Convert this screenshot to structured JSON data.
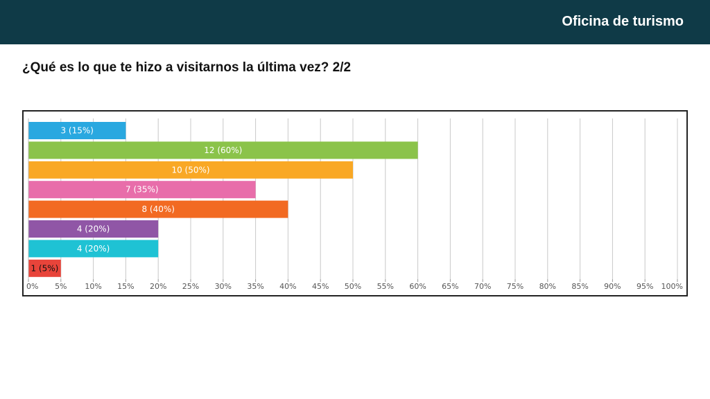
{
  "header": {
    "title": "Oficina de turismo"
  },
  "question": {
    "text": "¿Qué es lo que te hizo a visitarnos la última vez? 2/2"
  },
  "chart_data": {
    "type": "bar",
    "orientation": "horizontal",
    "title": "",
    "xlabel": "",
    "ylabel": "",
    "xlim": [
      0,
      100
    ],
    "grid": true,
    "x_ticks": [
      "0%",
      "5%",
      "10%",
      "15%",
      "20%",
      "25%",
      "30%",
      "35%",
      "40%",
      "45%",
      "50%",
      "55%",
      "60%",
      "65%",
      "70%",
      "75%",
      "80%",
      "85%",
      "90%",
      "95%",
      "100%"
    ],
    "bars": [
      {
        "count": 3,
        "percent": 15,
        "label": "3 (15%)",
        "color": "#29a8e0",
        "label_color": "#ffffff"
      },
      {
        "count": 12,
        "percent": 60,
        "label": "12 (60%)",
        "color": "#8bc34a",
        "label_color": "#ffffff"
      },
      {
        "count": 10,
        "percent": 50,
        "label": "10 (50%)",
        "color": "#f9a825",
        "label_color": "#ffffff"
      },
      {
        "count": 7,
        "percent": 35,
        "label": "7 (35%)",
        "color": "#e86daa",
        "label_color": "#ffffff"
      },
      {
        "count": 8,
        "percent": 40,
        "label": "8 (40%)",
        "color": "#f26a22",
        "label_color": "#ffffff"
      },
      {
        "count": 4,
        "percent": 20,
        "label": "4 (20%)",
        "color": "#9056a6",
        "label_color": "#ffffff"
      },
      {
        "count": 4,
        "percent": 20,
        "label": "4 (20%)",
        "color": "#1fc2d4",
        "label_color": "#ffffff"
      },
      {
        "count": 1,
        "percent": 5,
        "label": "1 (5%)",
        "color": "#e8443a",
        "label_color": "#111111"
      }
    ]
  }
}
